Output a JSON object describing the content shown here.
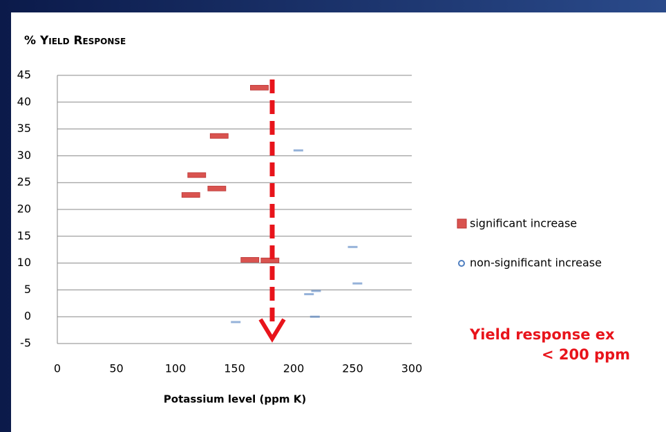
{
  "chart_data": {
    "type": "scatter",
    "title": "% Yield Response",
    "x_label": "Potassium level (ppm K)",
    "xlim": [
      0,
      300
    ],
    "xticks": [
      0,
      50,
      100,
      150,
      200,
      250,
      300
    ],
    "ylim": [
      -5,
      45
    ],
    "yticks": [
      -5,
      0,
      5,
      10,
      15,
      20,
      25,
      30,
      35,
      40,
      45
    ],
    "grid": true,
    "legend": "right",
    "series": [
      {
        "name": "significant increase",
        "color": "#d9534f",
        "x": [
          171,
          137,
          118,
          135,
          113,
          163,
          180
        ],
        "y": [
          42.7,
          33.7,
          26.4,
          23.9,
          22.7,
          10.6,
          10.5
        ]
      },
      {
        "name": "non-significant increase",
        "color": "#4f7fc0",
        "x": [
          204,
          250,
          254,
          219,
          213,
          218,
          151
        ],
        "y": [
          31,
          13,
          6.2,
          4.8,
          4.2,
          0,
          -1
        ]
      }
    ],
    "annotations": [
      "Yield response ex",
      "<  200 ppm"
    ]
  }
}
